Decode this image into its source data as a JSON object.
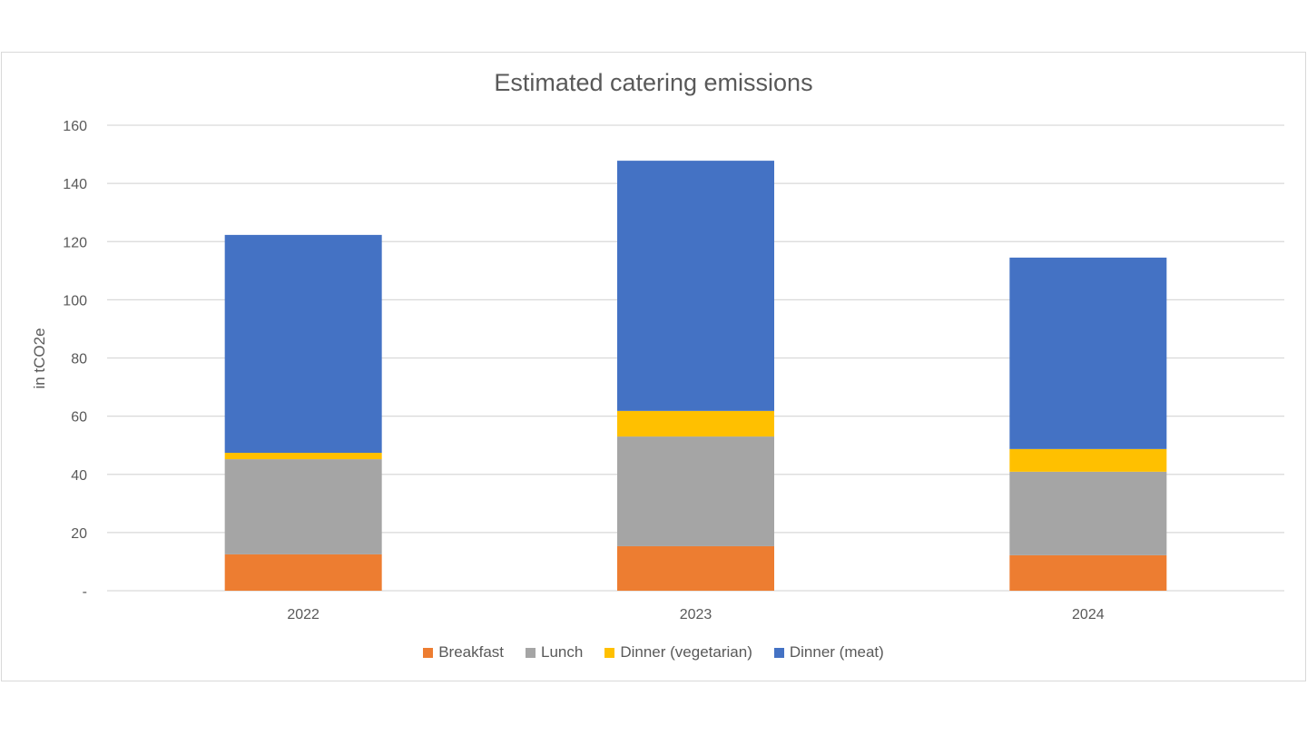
{
  "chart_data": {
    "type": "bar",
    "stacked": true,
    "title": "Estimated catering emissions",
    "xlabel": "",
    "ylabel": "in tCO2e",
    "categories": [
      "2022",
      "2023",
      "2024"
    ],
    "ylim": [
      0,
      160
    ],
    "yticks": [
      0,
      20,
      40,
      60,
      80,
      100,
      120,
      140,
      160
    ],
    "ytick_labels": [
      "-",
      "20",
      "40",
      "60",
      "80",
      "100",
      "120",
      "140",
      "160"
    ],
    "grid": true,
    "legend_position": "bottom",
    "series": [
      {
        "name": "Breakfast",
        "color": "#ED7D31",
        "values": [
          12.5,
          15.3,
          12.2
        ]
      },
      {
        "name": "Lunch",
        "color": "#A5A5A5",
        "values": [
          32.7,
          37.7,
          28.7
        ]
      },
      {
        "name": "Dinner (vegetarian)",
        "color": "#FFC000",
        "values": [
          2.2,
          8.8,
          7.8
        ]
      },
      {
        "name": "Dinner (meat)",
        "color": "#4472C4",
        "values": [
          74.9,
          86.0,
          65.8
        ]
      }
    ]
  }
}
